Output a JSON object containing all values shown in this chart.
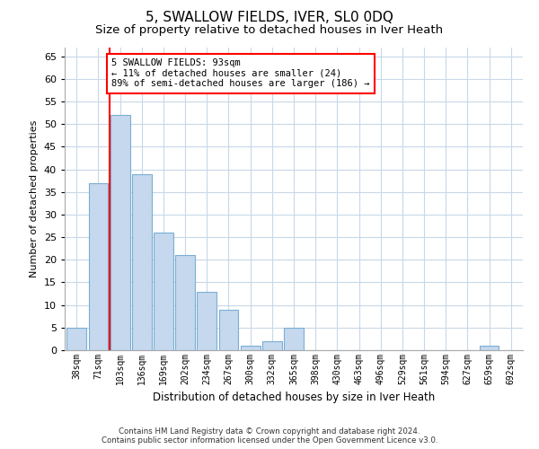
{
  "title": "5, SWALLOW FIELDS, IVER, SL0 0DQ",
  "subtitle": "Size of property relative to detached houses in Iver Heath",
  "xlabel": "Distribution of detached houses by size in Iver Heath",
  "ylabel": "Number of detached properties",
  "categories": [
    "38sqm",
    "71sqm",
    "103sqm",
    "136sqm",
    "169sqm",
    "202sqm",
    "234sqm",
    "267sqm",
    "300sqm",
    "332sqm",
    "365sqm",
    "398sqm",
    "430sqm",
    "463sqm",
    "496sqm",
    "529sqm",
    "561sqm",
    "594sqm",
    "627sqm",
    "659sqm",
    "692sqm"
  ],
  "values": [
    5,
    37,
    52,
    39,
    26,
    21,
    13,
    9,
    1,
    2,
    5,
    0,
    0,
    0,
    0,
    0,
    0,
    0,
    0,
    1,
    0
  ],
  "bar_color": "#c5d8ed",
  "bar_edge_color": "#7aafd4",
  "red_line_index": 2,
  "annotation_text": "5 SWALLOW FIELDS: 93sqm\n← 11% of detached houses are smaller (24)\n89% of semi-detached houses are larger (186) →",
  "ylim": [
    0,
    67
  ],
  "yticks": [
    0,
    5,
    10,
    15,
    20,
    25,
    30,
    35,
    40,
    45,
    50,
    55,
    60,
    65
  ],
  "footer_line1": "Contains HM Land Registry data © Crown copyright and database right 2024.",
  "footer_line2": "Contains public sector information licensed under the Open Government Licence v3.0.",
  "bg_color": "#ffffff",
  "grid_color": "#c8d8e8",
  "title_fontsize": 11,
  "subtitle_fontsize": 9.5
}
